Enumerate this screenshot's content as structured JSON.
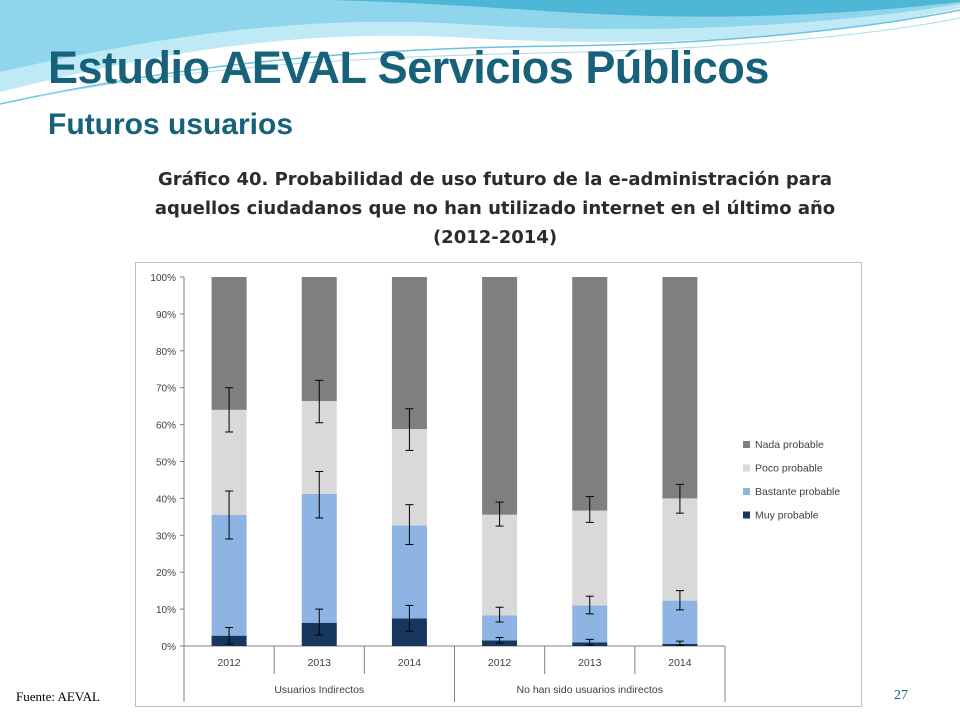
{
  "slide": {
    "title": "Estudio AEVAL Servicios Públicos",
    "subtitle": "Futuros usuarios",
    "source": "Fuente: AEVAL",
    "page_number": "27"
  },
  "colors": {
    "accent": "#17627a",
    "nada": "#7f7f7f",
    "poco": "#d9d9d9",
    "bastante": "#8eb4e3",
    "muy": "#17375e"
  },
  "chart_data": {
    "type": "bar",
    "stacked": true,
    "title_lines": [
      "Gráfico 40. Probabilidad de uso futuro de la e-administración para",
      "aquellos ciudadanos que no han utilizado internet en el último año",
      "(2012-2014)"
    ],
    "categories": [
      "2012",
      "2013",
      "2014",
      "2012",
      "2013",
      "2014"
    ],
    "groups": [
      {
        "label": "Usuarios Indirectos",
        "categories": [
          0,
          1,
          2
        ]
      },
      {
        "label": "No han sido usuarios indirectos",
        "categories": [
          3,
          4,
          5
        ]
      }
    ],
    "y_ticks": [
      "0%",
      "10%",
      "20%",
      "30%",
      "40%",
      "50%",
      "60%",
      "70%",
      "80%",
      "90%",
      "100%"
    ],
    "ylim": [
      0,
      100
    ],
    "grid": false,
    "legend_position": "right",
    "series": [
      {
        "name": "Muy probable",
        "color": "#17375e",
        "values": [
          2.8,
          6.3,
          7.5,
          1.5,
          1.0,
          0.6
        ]
      },
      {
        "name": "Bastante probable",
        "color": "#8eb4e3",
        "values": [
          32.7,
          34.9,
          25.2,
          6.8,
          10.0,
          11.7
        ]
      },
      {
        "name": "Poco probable",
        "color": "#d9d9d9",
        "values": [
          28.5,
          25.2,
          26.1,
          27.3,
          25.7,
          27.7
        ]
      },
      {
        "name": "Nada probable",
        "color": "#7f7f7f",
        "values": [
          36.0,
          33.6,
          41.2,
          64.4,
          63.3,
          60.0
        ]
      }
    ],
    "error_bars": [
      {
        "series": "Muy probable",
        "low": [
          0.5,
          3.0,
          4.0,
          0.8,
          0.3,
          0.2
        ],
        "high": [
          5.0,
          10.0,
          11.0,
          2.3,
          1.8,
          1.3
        ]
      },
      {
        "series": "Bastante probable",
        "low": [
          29.0,
          34.7,
          27.5,
          6.5,
          8.7,
          9.8
        ],
        "high": [
          42.0,
          47.3,
          38.3,
          10.5,
          13.5,
          15.0
        ]
      },
      {
        "series": "Poco probable",
        "low": [
          58.0,
          60.5,
          53.0,
          32.5,
          33.5,
          36.0
        ],
        "high": [
          70.0,
          72.0,
          64.3,
          39.0,
          40.5,
          43.8
        ]
      }
    ],
    "legend_order": [
      "Nada probable",
      "Poco probable",
      "Bastante probable",
      "Muy probable"
    ]
  }
}
